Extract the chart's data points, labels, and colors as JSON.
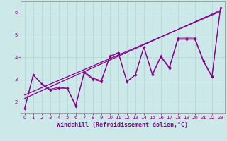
{
  "xlabel": "Windchill (Refroidissement éolien,°C)",
  "bg_color": "#cce8e8",
  "grid_color": "#aad4d4",
  "line_color": "#880088",
  "x": [
    0,
    1,
    2,
    3,
    4,
    5,
    6,
    7,
    8,
    9,
    10,
    11,
    12,
    13,
    14,
    15,
    16,
    17,
    18,
    19,
    20,
    21,
    22,
    23
  ],
  "y_main": [
    1.7,
    3.2,
    2.8,
    2.5,
    2.6,
    2.6,
    1.8,
    3.35,
    3.05,
    2.95,
    4.0,
    4.2,
    2.9,
    3.2,
    4.45,
    3.2,
    4.0,
    3.5,
    4.8,
    4.8,
    4.8,
    3.8,
    3.1,
    6.2
  ],
  "y_line2": [
    1.7,
    3.2,
    2.8,
    2.55,
    2.65,
    2.6,
    1.85,
    3.3,
    3.0,
    2.9,
    4.05,
    4.2,
    2.9,
    3.2,
    4.45,
    3.25,
    4.05,
    3.55,
    4.85,
    4.85,
    4.85,
    3.85,
    3.15,
    6.2
  ],
  "trend1_y": [
    2.15,
    6.1
  ],
  "trend2_y": [
    2.3,
    6.05
  ],
  "trend_x": [
    0,
    23
  ],
  "ylim": [
    1.5,
    6.5
  ],
  "xlim": [
    -0.5,
    23.5
  ],
  "yticks": [
    2,
    3,
    4,
    5,
    6
  ],
  "xticks": [
    0,
    1,
    2,
    3,
    4,
    5,
    6,
    7,
    8,
    9,
    10,
    11,
    12,
    13,
    14,
    15,
    16,
    17,
    18,
    19,
    20,
    21,
    22,
    23
  ],
  "tick_color": "#880088",
  "xlabel_color": "#880088",
  "spine_color": "#888888"
}
